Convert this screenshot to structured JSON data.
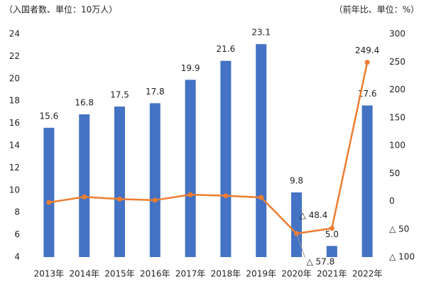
{
  "chart_data": {
    "type": "bar-line",
    "y_axis_label": "（入国者数、単位：10万人）",
    "y2_axis_label": "（前年比、単位：%）",
    "categories": [
      "2013年",
      "2014年",
      "2015年",
      "2016年",
      "2017年",
      "2018年",
      "2019年",
      "2020年",
      "2021年",
      "2022年"
    ],
    "series": [
      {
        "type": "bar",
        "color": "#4472c4",
        "values": [
          15.6,
          16.8,
          17.5,
          17.8,
          19.9,
          21.6,
          23.1,
          9.8,
          5.0,
          17.6
        ],
        "value_labels": [
          "15.6",
          "16.8",
          "17.5",
          "17.8",
          "19.9",
          "21.6",
          "23.1",
          "9.8",
          "5.0",
          "17.6"
        ]
      },
      {
        "type": "line",
        "axis": "y2",
        "color": "#ed7d31",
        "values": [
          -2,
          8,
          4,
          2,
          12,
          10,
          7,
          -57.8,
          -48.4,
          249.4
        ],
        "value_labels": [
          null,
          null,
          null,
          null,
          null,
          null,
          null,
          "△ 57.8",
          "△ 48.4",
          "249.4"
        ]
      }
    ],
    "ylim": [
      4,
      24
    ],
    "yticks": [
      4,
      6,
      8,
      10,
      12,
      14,
      16,
      18,
      20,
      22,
      24
    ],
    "y2lim": [
      -100,
      300
    ],
    "y2ticks": [
      {
        "value": -100,
        "label": "△ 100"
      },
      {
        "value": -50,
        "label": "△ 50"
      },
      0,
      50,
      100,
      150,
      200,
      250,
      300
    ],
    "grid": false
  }
}
